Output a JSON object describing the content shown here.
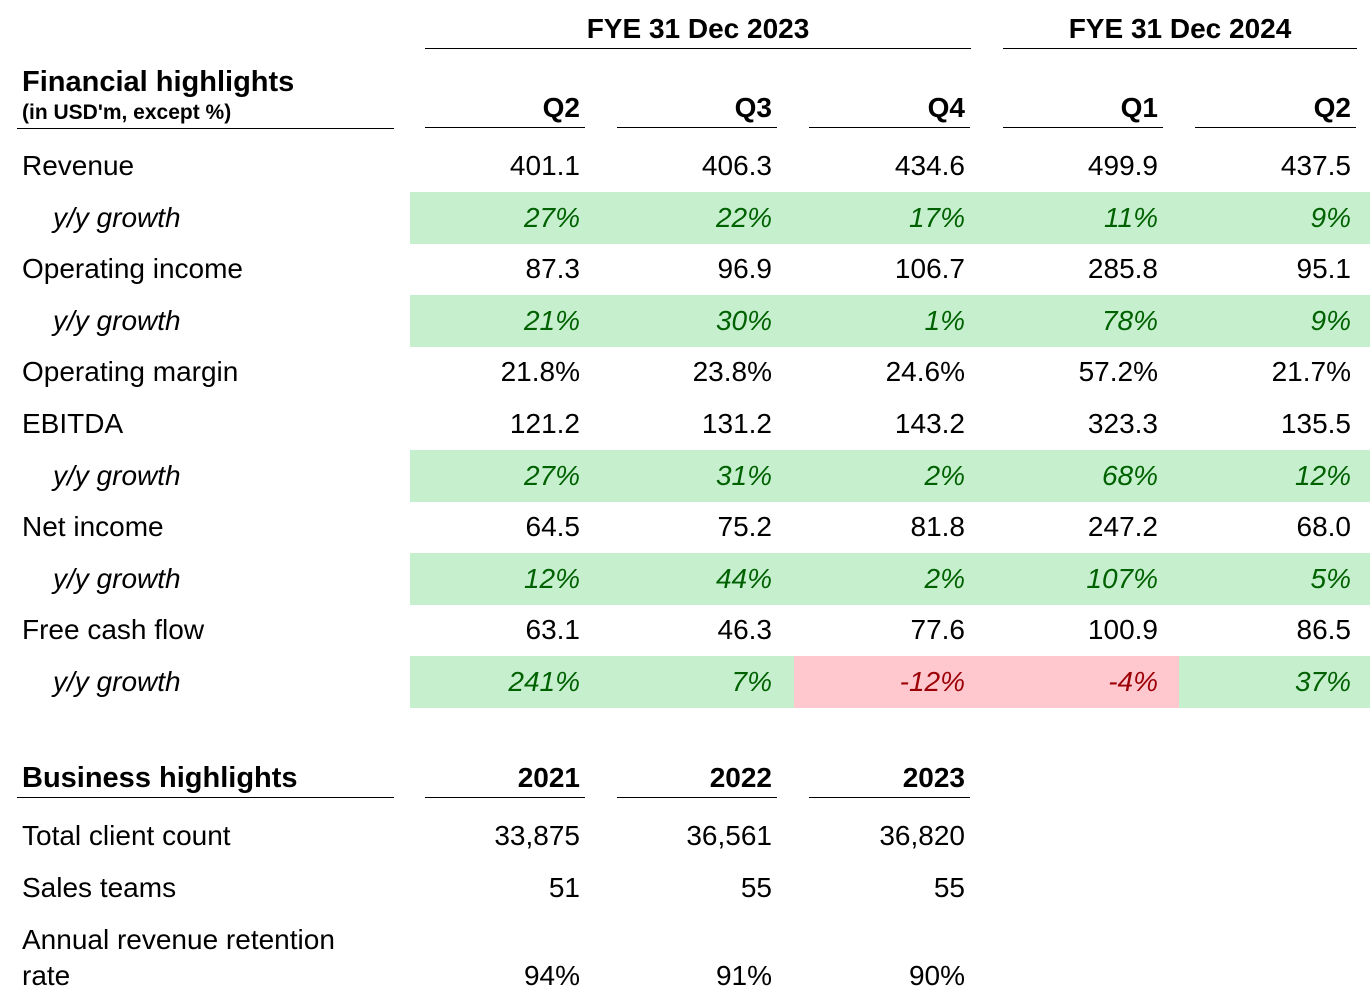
{
  "period_headers": [
    "FYE 31 Dec 2023",
    "FYE 31 Dec 2024"
  ],
  "financial": {
    "title": "Financial highlights",
    "subtitle": "(in USD'm, except %)",
    "columns": [
      "Q2",
      "Q3",
      "Q4",
      "Q1",
      "Q2"
    ],
    "rows": [
      {
        "label": "Revenue",
        "values": [
          "401.1",
          "406.3",
          "434.6",
          "499.9",
          "437.5"
        ]
      },
      {
        "label": "y/y growth",
        "values": [
          "27%",
          "22%",
          "17%",
          "11%",
          "9%"
        ],
        "sentiment": [
          "positive",
          "positive",
          "positive",
          "positive",
          "positive"
        ]
      },
      {
        "label": "Operating income",
        "values": [
          "87.3",
          "96.9",
          "106.7",
          "285.8",
          "95.1"
        ]
      },
      {
        "label": "y/y growth",
        "values": [
          "21%",
          "30%",
          "1%",
          "78%",
          "9%"
        ],
        "sentiment": [
          "positive",
          "positive",
          "positive",
          "positive",
          "positive"
        ]
      },
      {
        "label": "Operating margin",
        "values": [
          "21.8%",
          "23.8%",
          "24.6%",
          "57.2%",
          "21.7%"
        ]
      },
      {
        "label": "EBITDA",
        "values": [
          "121.2",
          "131.2",
          "143.2",
          "323.3",
          "135.5"
        ]
      },
      {
        "label": "y/y growth",
        "values": [
          "27%",
          "31%",
          "2%",
          "68%",
          "12%"
        ],
        "sentiment": [
          "positive",
          "positive",
          "positive",
          "positive",
          "positive"
        ]
      },
      {
        "label": "Net income",
        "values": [
          "64.5",
          "75.2",
          "81.8",
          "247.2",
          "68.0"
        ]
      },
      {
        "label": "y/y growth",
        "values": [
          "12%",
          "44%",
          "2%",
          "107%",
          "5%"
        ],
        "sentiment": [
          "positive",
          "positive",
          "positive",
          "positive",
          "positive"
        ]
      },
      {
        "label": "Free cash flow",
        "values": [
          "63.1",
          "46.3",
          "77.6",
          "100.9",
          "86.5"
        ]
      },
      {
        "label": "y/y growth",
        "values": [
          "241%",
          "7%",
          "-12%",
          "-4%",
          "37%"
        ],
        "sentiment": [
          "positive",
          "positive",
          "negative",
          "negative",
          "positive"
        ]
      }
    ]
  },
  "business": {
    "title": "Business highlights",
    "columns": [
      "2021",
      "2022",
      "2023"
    ],
    "rows": [
      {
        "label": "Total client count",
        "values": [
          "33,875",
          "36,561",
          "36,820"
        ]
      },
      {
        "label": "Sales teams",
        "values": [
          "51",
          "55",
          "55"
        ]
      },
      {
        "label_line1": "Annual revenue retention",
        "label_line2": "rate",
        "values": [
          "94%",
          "91%",
          "90%"
        ]
      }
    ]
  },
  "colors": {
    "positive_fill": "#c6efce",
    "positive_text": "#006100",
    "negative_fill": "#ffc7ce",
    "negative_text": "#9c0006"
  }
}
